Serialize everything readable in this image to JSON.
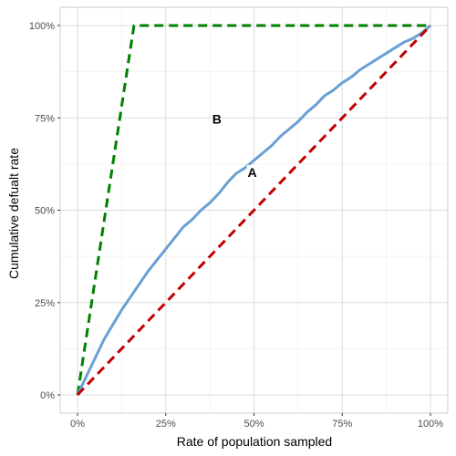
{
  "chart_data": {
    "type": "line",
    "xlabel": "Rate of population sampled",
    "ylabel": "Cumulative defualt rate",
    "xlim": [
      0,
      1
    ],
    "ylim": [
      0,
      1
    ],
    "x_ticks": [
      {
        "value": 0,
        "label": "0%"
      },
      {
        "value": 0.25,
        "label": "25%"
      },
      {
        "value": 0.5,
        "label": "50%"
      },
      {
        "value": 0.75,
        "label": "75%"
      },
      {
        "value": 1,
        "label": "100%"
      }
    ],
    "y_ticks": [
      {
        "value": 0,
        "label": "0%"
      },
      {
        "value": 0.25,
        "label": "25%"
      },
      {
        "value": 0.5,
        "label": "50%"
      },
      {
        "value": 0.75,
        "label": "75%"
      },
      {
        "value": 1,
        "label": "100%"
      }
    ],
    "grid": true,
    "series": [
      {
        "style": "dashed",
        "color": "#008000",
        "x": [
          0,
          0.16,
          1
        ],
        "y": [
          0,
          1,
          1
        ]
      },
      {
        "style": "solid",
        "color": "#6a9fd4",
        "x": [
          0,
          0.025,
          0.05,
          0.075,
          0.1,
          0.125,
          0.15,
          0.175,
          0.2,
          0.225,
          0.25,
          0.275,
          0.3,
          0.325,
          0.35,
          0.375,
          0.4,
          0.425,
          0.45,
          0.475,
          0.5,
          0.525,
          0.55,
          0.575,
          0.6,
          0.625,
          0.65,
          0.675,
          0.7,
          0.725,
          0.75,
          0.775,
          0.8,
          0.825,
          0.85,
          0.875,
          0.9,
          0.925,
          0.95,
          0.975,
          1
        ],
        "y": [
          0,
          0.05,
          0.1,
          0.15,
          0.19,
          0.23,
          0.265,
          0.3,
          0.335,
          0.365,
          0.395,
          0.425,
          0.455,
          0.475,
          0.5,
          0.52,
          0.545,
          0.575,
          0.6,
          0.615,
          0.635,
          0.655,
          0.675,
          0.7,
          0.72,
          0.74,
          0.765,
          0.785,
          0.81,
          0.825,
          0.845,
          0.86,
          0.88,
          0.895,
          0.91,
          0.925,
          0.94,
          0.955,
          0.965,
          0.98,
          1
        ]
      },
      {
        "style": "dashed",
        "color": "#c00000",
        "x": [
          0,
          1
        ],
        "y": [
          0,
          1
        ]
      }
    ],
    "annotations": [
      {
        "text": "B",
        "x": 0.395,
        "y": 0.745
      },
      {
        "text": "A",
        "x": 0.495,
        "y": 0.6
      }
    ]
  }
}
